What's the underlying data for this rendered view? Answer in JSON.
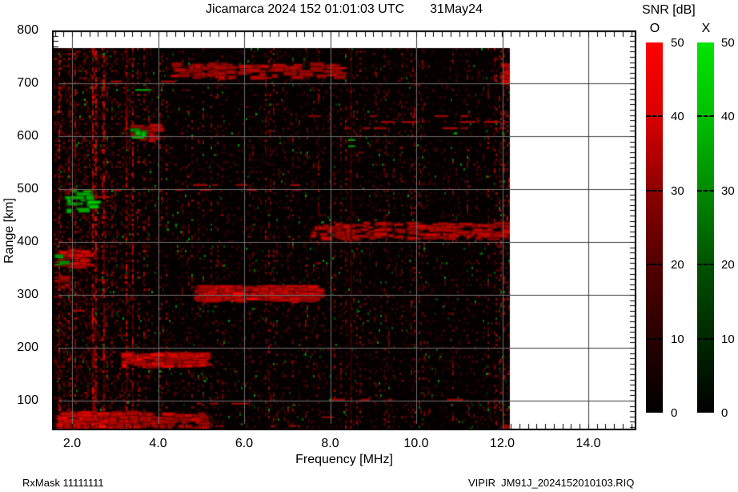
{
  "title": {
    "text": "Jicamarca 2024 152 01:01:03 UTC",
    "date": "31May24"
  },
  "footer": {
    "rx_mask": "RxMask 11111111",
    "file": "VIPIR  JM91J_2024152010103.RIQ"
  },
  "colorbar": {
    "title": "SNR [dB]",
    "bars": [
      {
        "label": "O",
        "top_color": "#ff0000",
        "stops": [
          "#ff0000",
          "#d90000",
          "#8d0000",
          "#520000",
          "#280000",
          "#000000"
        ],
        "ticks": [
          "50",
          "40",
          "30",
          "20",
          "10",
          "0"
        ]
      },
      {
        "label": "X",
        "top_color": "#00dd00",
        "stops": [
          "#00e400",
          "#00c000",
          "#008a00",
          "#005200",
          "#002800",
          "#000000"
        ],
        "ticks": [
          "50",
          "40",
          "30",
          "20",
          "10",
          "0"
        ]
      }
    ],
    "min_db": 0,
    "max_db": 50
  },
  "chart_data": {
    "type": "heatmap",
    "title": "Jicamarca 2024 152 01:01:03 UTC  31May24",
    "xlabel": "Frequency [MHz]",
    "ylabel": "Range [km]",
    "xlim": [
      1.53,
      15.12
    ],
    "ylim": [
      44,
      800
    ],
    "x_tick_labels": [
      "2.0",
      "4.0",
      "6.0",
      "8.0",
      "10.0",
      "12.0",
      "14.0"
    ],
    "x_tick_values": [
      2,
      4,
      6,
      8,
      10,
      12,
      14
    ],
    "y_tick_labels": [
      "800",
      "700",
      "600",
      "500",
      "400",
      "300",
      "200",
      "100"
    ],
    "y_tick_values": [
      800,
      700,
      600,
      500,
      400,
      300,
      200,
      100
    ],
    "x_minor_step_mhz": 0.2,
    "y_minor_step_km": 10,
    "grid": true,
    "grid_color_over_data": "#6f6f6f",
    "grid_color_over_blank": "#3a3a3a",
    "colorscale": {
      "label": "SNR [dB]",
      "min_db": 0,
      "max_db": 50,
      "o_mode_color": "red",
      "x_mode_color": "green"
    },
    "data_coverage": {
      "f_mhz": [
        1.53,
        12.18
      ],
      "range_km": [
        47,
        767
      ]
    },
    "noise": {
      "seed": 1337,
      "speckle_prob": 0.13,
      "striation_prob": 0.42,
      "low_freq_boost_below_mhz": 3.4,
      "green_speck_prob": 0.012
    },
    "features": [
      {
        "name": "d-region-strong",
        "mode": "O",
        "f_mhz": [
          1.6,
          3.4
        ],
        "range_km": [
          48,
          80
        ],
        "snr_db": 48,
        "style": "blobs",
        "density": 2.2
      },
      {
        "name": "d-region-mid",
        "mode": "O",
        "f_mhz": [
          3.3,
          5.1
        ],
        "range_km": [
          50,
          78
        ],
        "snr_db": 40,
        "style": "blobs",
        "density": 1.1
      },
      {
        "name": "d-region-faint",
        "mode": "O",
        "f_mhz": [
          5.0,
          8.1
        ],
        "range_km": [
          48,
          75
        ],
        "snr_db": 20,
        "style": "dashes",
        "density": 0.4
      },
      {
        "name": "e-region-trace",
        "mode": "O",
        "f_mhz": [
          3.15,
          5.0
        ],
        "range_km": [
          168,
          192
        ],
        "snr_db": 47,
        "style": "blobs",
        "density": 2.4
      },
      {
        "name": "f-region-trace",
        "mode": "O",
        "f_mhz": [
          4.85,
          7.75
        ],
        "range_km": [
          292,
          318
        ],
        "snr_db": 49,
        "style": "blobs",
        "density": 2.6
      },
      {
        "name": "second-hop-band",
        "mode": "O",
        "f_mhz": [
          7.45,
          12.15
        ],
        "range_km": [
          408,
          438
        ],
        "snr_db": 36,
        "style": "blobs",
        "density": 0.9
      },
      {
        "name": "topside-band",
        "mode": "O",
        "f_mhz": [
          4.3,
          8.1
        ],
        "range_km": [
          712,
          740
        ],
        "snr_db": 33,
        "style": "blobs",
        "density": 0.8
      },
      {
        "name": "topside-dashes",
        "mode": "O",
        "f_mhz": [
          2.4,
          4.8
        ],
        "range_km": [
          698,
          712
        ],
        "snr_db": 30,
        "style": "dashes",
        "density": 0.55
      },
      {
        "name": "band-620-scatter",
        "mode": "O",
        "f_mhz": [
          7.5,
          12.15
        ],
        "range_km": [
          612,
          645
        ],
        "snr_db": 28,
        "style": "dashes",
        "density": 0.4
      },
      {
        "name": "echo-610",
        "mode": "O",
        "f_mhz": [
          3.3,
          3.9
        ],
        "range_km": [
          596,
          624
        ],
        "snr_db": 36,
        "style": "blobs",
        "density": 1.4
      },
      {
        "name": "echo-610-green",
        "mode": "X",
        "f_mhz": [
          3.35,
          3.75
        ],
        "range_km": [
          598,
          620
        ],
        "snr_db": 34,
        "style": "blobs",
        "density": 0.5
      },
      {
        "name": "band-505-dashes",
        "mode": "O",
        "f_mhz": [
          4.4,
          7.3
        ],
        "range_km": [
          494,
          516
        ],
        "snr_db": 30,
        "style": "dashes",
        "density": 0.45
      },
      {
        "name": "dashes-490",
        "mode": "O",
        "f_mhz": [
          1.9,
          3.2
        ],
        "range_km": [
          478,
          504
        ],
        "snr_db": 33,
        "style": "dashes",
        "density": 0.65
      },
      {
        "name": "green-cluster-480",
        "mode": "X",
        "f_mhz": [
          1.85,
          2.45
        ],
        "range_km": [
          462,
          500
        ],
        "snr_db": 36,
        "style": "blobs",
        "density": 0.65
      },
      {
        "name": "left-edge-370",
        "mode": "O",
        "f_mhz": [
          1.55,
          2.25
        ],
        "range_km": [
          356,
          388
        ],
        "snr_db": 42,
        "style": "blobs",
        "density": 1.3
      },
      {
        "name": "green-speck-365",
        "mode": "X",
        "f_mhz": [
          1.6,
          1.8
        ],
        "range_km": [
          358,
          380
        ],
        "snr_db": 30,
        "style": "blobs",
        "density": 0.5
      },
      {
        "name": "left-edge-325",
        "mode": "O",
        "f_mhz": [
          1.55,
          1.95
        ],
        "range_km": [
          314,
          336
        ],
        "snr_db": 30,
        "style": "blobs",
        "density": 0.8
      },
      {
        "name": "dashes-265",
        "mode": "O",
        "f_mhz": [
          2.0,
          3.6
        ],
        "range_km": [
          254,
          278
        ],
        "snr_db": 30,
        "style": "dashes",
        "density": 0.5
      },
      {
        "name": "band-100-scatter-high",
        "mode": "O",
        "f_mhz": [
          7.5,
          12.1
        ],
        "range_km": [
          95,
          112
        ],
        "snr_db": 28,
        "style": "dashes",
        "density": 0.35
      },
      {
        "name": "band-100-scatter-low",
        "mode": "O",
        "f_mhz": [
          4.9,
          6.7
        ],
        "range_km": [
          88,
          104
        ],
        "snr_db": 24,
        "style": "dashes",
        "density": 0.35
      },
      {
        "name": "rfi-line-8.5mhz",
        "mode": "O",
        "f_mhz": [
          8.45,
          8.52
        ],
        "range_km": [
          47,
          767
        ],
        "snr_db": 30,
        "style": "vline",
        "density": 1
      },
      {
        "name": "rfi-green-8.5mhz",
        "mode": "X",
        "f_mhz": [
          8.42,
          8.58
        ],
        "range_km": [
          545,
          600
        ],
        "snr_db": 30,
        "style": "dashes",
        "density": 0.3
      },
      {
        "name": "green-specks-690",
        "mode": "X",
        "f_mhz": [
          1.9,
          3.9
        ],
        "range_km": [
          680,
          698
        ],
        "snr_db": 28,
        "style": "dashes",
        "density": 0.25
      },
      {
        "name": "right-edge-top-blob",
        "mode": "O",
        "f_mhz": [
          11.95,
          12.18
        ],
        "range_km": [
          700,
          738
        ],
        "snr_db": 45,
        "style": "blobs",
        "density": 2.0
      },
      {
        "name": "right-edge-bottom-blob",
        "mode": "O",
        "f_mhz": [
          11.95,
          12.18
        ],
        "range_km": [
          44,
          60
        ],
        "snr_db": 40,
        "style": "blobs",
        "density": 1.5
      },
      {
        "name": "right-edge-430",
        "mode": "O",
        "f_mhz": [
          12.0,
          12.18
        ],
        "range_km": [
          420,
          445
        ],
        "snr_db": 35,
        "style": "blobs",
        "density": 1.0
      }
    ]
  }
}
